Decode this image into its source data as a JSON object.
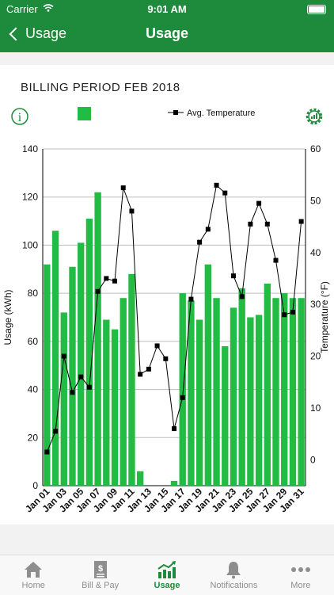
{
  "status": {
    "carrier": "Carrier",
    "time": "9:01 AM"
  },
  "nav": {
    "back_label": "Usage",
    "title": "Usage"
  },
  "billing_period": "BILLING PERIOD FEB 2018",
  "legend": {
    "temp_label": "Avg. Temperature"
  },
  "colors": {
    "brand": "#1e8a3c",
    "bar": "#22bb44",
    "line": "#000000"
  },
  "icons": {
    "info": "info-icon",
    "settings": "gear-chart-icon"
  },
  "chart_data": {
    "type": "bar",
    "categories": [
      "Jan 01",
      "Jan 02",
      "Jan 03",
      "Jan 04",
      "Jan 05",
      "Jan 06",
      "Jan 07",
      "Jan 08",
      "Jan 09",
      "Jan 10",
      "Jan 11",
      "Jan 12",
      "Jan 13",
      "Jan 14",
      "Jan 15",
      "Jan 16",
      "Jan 17",
      "Jan 18",
      "Jan 19",
      "Jan 20",
      "Jan 21",
      "Jan 22",
      "Jan 23",
      "Jan 24",
      "Jan 25",
      "Jan 26",
      "Jan 27",
      "Jan 28",
      "Jan 29",
      "Jan 30",
      "Jan 31"
    ],
    "tick_labels": [
      "Jan 01",
      "Jan 03",
      "Jan 05",
      "Jan 07",
      "Jan 09",
      "Jan 11",
      "Jan 13",
      "Jan 15",
      "Jan 17",
      "Jan 19",
      "Jan 21",
      "Jan 23",
      "Jan 25",
      "Jan 27",
      "Jan 29",
      "Jan 31"
    ],
    "usage": [
      92,
      106,
      72,
      91,
      101,
      111,
      122,
      69,
      65,
      78,
      88,
      6,
      0,
      0,
      0,
      2,
      80,
      77,
      69,
      92,
      78,
      58,
      74,
      82,
      70,
      71,
      84,
      78,
      80,
      78,
      78
    ],
    "temperature": [
      1.5,
      5.5,
      20,
      13,
      16,
      14,
      32.5,
      35,
      34.5,
      52.5,
      48,
      16.5,
      17.5,
      22,
      19.5,
      6,
      12,
      31,
      42,
      44.5,
      53,
      51.5,
      35.5,
      31.5,
      45.5,
      49.5,
      45.5,
      38.5,
      28,
      28.5,
      46
    ],
    "ylabel": "Usage (kWh)",
    "y2label": "Temperature (°F)",
    "ylim": [
      0,
      140
    ],
    "y2lim": [
      -5,
      60
    ],
    "yticks": [
      "0",
      "20",
      "40",
      "60",
      "80",
      "100",
      "120",
      "140"
    ],
    "y2ticks": [
      "0",
      "10",
      "20",
      "30",
      "40",
      "50",
      "60"
    ],
    "grid": true
  },
  "tabs": [
    {
      "label": "Home",
      "icon": "home-icon"
    },
    {
      "label": "Bill & Pay",
      "icon": "bill-icon"
    },
    {
      "label": "Usage",
      "icon": "usage-chart-icon"
    },
    {
      "label": "Notifications",
      "icon": "bell-icon"
    },
    {
      "label": "More",
      "icon": "more-dots-icon"
    }
  ]
}
